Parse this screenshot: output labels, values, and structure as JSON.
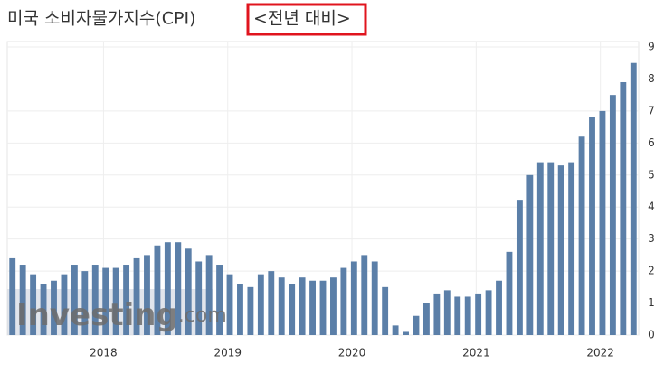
{
  "chart_data": {
    "type": "bar",
    "title": "미국 소비자물가지수(CPI)",
    "subtitle": "<전년 대비>",
    "watermark": {
      "brand": "Investing",
      "suffix": ".com"
    },
    "categories": [
      null,
      null,
      null,
      null,
      null,
      null,
      null,
      null,
      null,
      null,
      "2018",
      null,
      null,
      null,
      null,
      null,
      null,
      null,
      null,
      null,
      null,
      null,
      "2019",
      null,
      null,
      null,
      null,
      null,
      null,
      null,
      null,
      null,
      null,
      null,
      "2020",
      null,
      null,
      null,
      null,
      null,
      null,
      null,
      null,
      null,
      null,
      null,
      "2021",
      null,
      null,
      null,
      null,
      null,
      null,
      null,
      null,
      null,
      null,
      null,
      "2022",
      null,
      null
    ],
    "values": [
      2.4,
      2.2,
      1.9,
      1.6,
      1.7,
      1.9,
      2.2,
      2.0,
      2.2,
      2.1,
      2.1,
      2.2,
      2.4,
      2.5,
      2.8,
      2.9,
      2.9,
      2.7,
      2.3,
      2.5,
      2.2,
      1.9,
      1.6,
      1.5,
      1.9,
      2.0,
      1.8,
      1.6,
      1.8,
      1.7,
      1.7,
      1.8,
      2.1,
      2.3,
      2.5,
      2.3,
      1.5,
      0.3,
      0.1,
      0.6,
      1.0,
      1.3,
      1.4,
      1.2,
      1.2,
      1.3,
      1.4,
      1.7,
      2.6,
      4.2,
      5.0,
      5.4,
      5.4,
      5.3,
      5.4,
      6.2,
      6.8,
      7.0,
      7.5,
      7.9,
      8.5
    ],
    "color": "#5b7fa8",
    "ylim": [
      0,
      9
    ],
    "yticks": [
      0,
      1,
      2,
      3,
      4,
      5,
      6,
      7,
      8,
      9
    ],
    "grid": true
  }
}
